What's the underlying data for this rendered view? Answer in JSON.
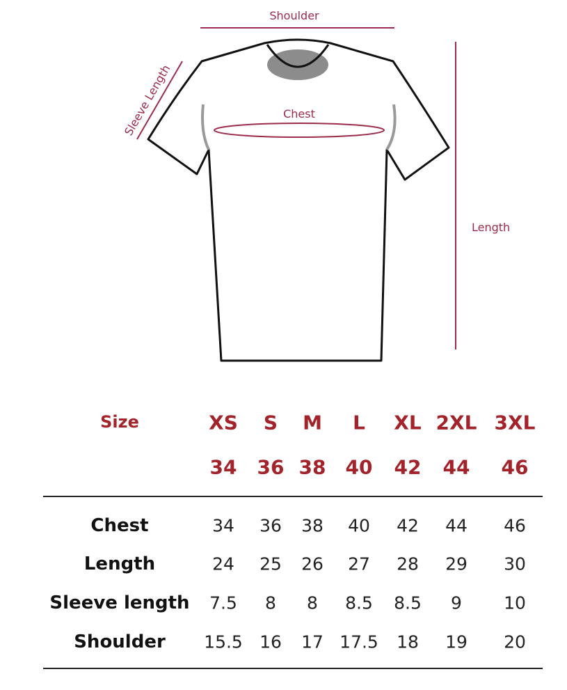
{
  "diagram": {
    "labels": {
      "shoulder": "Shoulder",
      "sleeve": "Sleeve Length",
      "chest": "Chest",
      "length": "Length"
    },
    "accent_color": "#9b2b4a"
  },
  "table": {
    "size_label": "Size",
    "sizes": [
      "XS",
      "S",
      "M",
      "L",
      "XL",
      "2XL",
      "3XL"
    ],
    "size_numbers": [
      "34",
      "36",
      "38",
      "40",
      "42",
      "44",
      "46"
    ],
    "rows": [
      {
        "label": "Chest",
        "values": [
          "34",
          "36",
          "38",
          "40",
          "42",
          "44",
          "46"
        ]
      },
      {
        "label": "Length",
        "values": [
          "24",
          "25",
          "26",
          "27",
          "28",
          "29",
          "30"
        ]
      },
      {
        "label": "Sleeve length",
        "values": [
          "7.5",
          "8",
          "8",
          "8.5",
          "8.5",
          "9",
          "10"
        ]
      },
      {
        "label": "Shoulder",
        "values": [
          "15.5",
          "16",
          "17",
          "17.5",
          "18",
          "19",
          "20"
        ]
      }
    ],
    "header_color": "#a3232a"
  }
}
